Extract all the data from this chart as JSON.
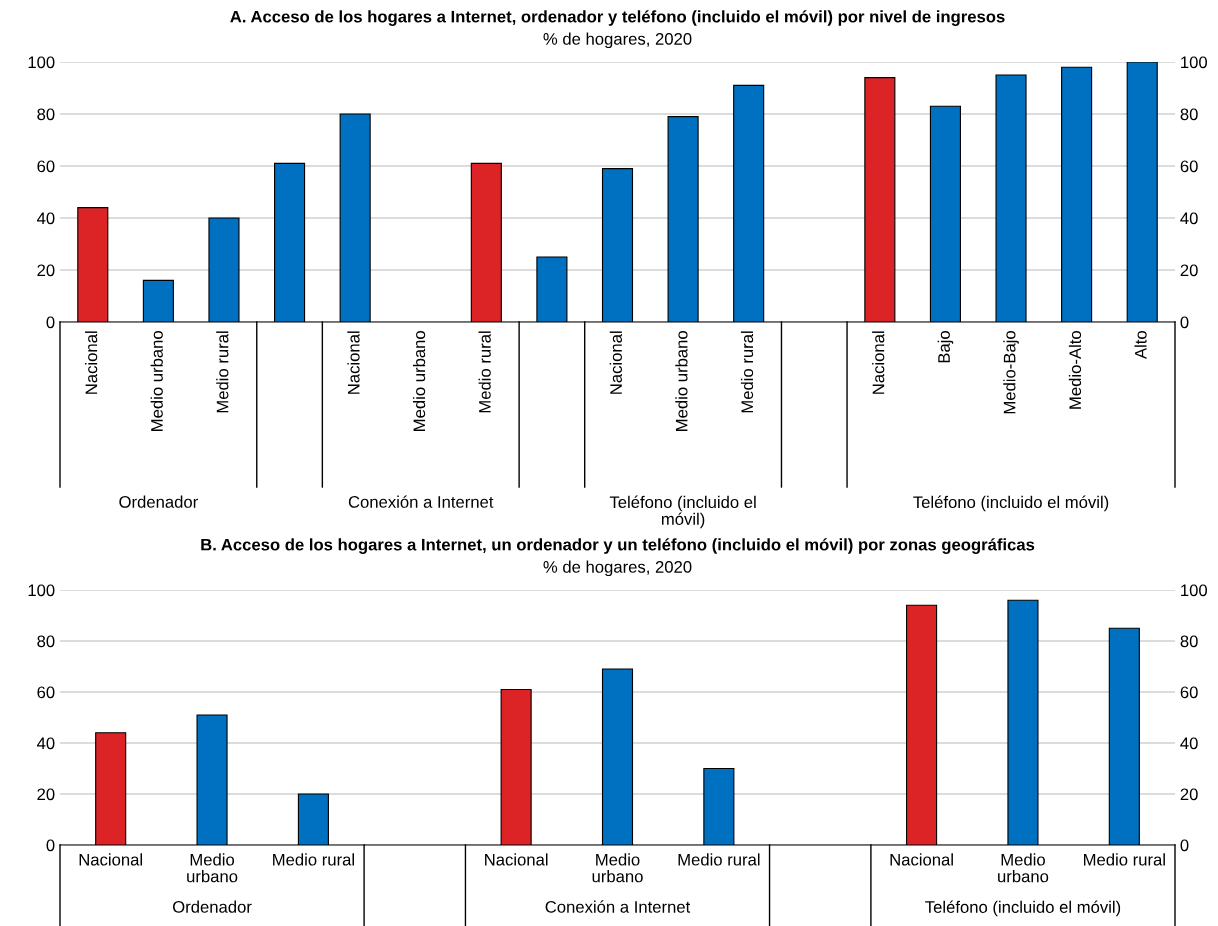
{
  "chart_data": [
    {
      "type": "bar",
      "title": "A. Acceso de los hogares a Internet, ordenador y teléfono (incluido el móvil) por nivel de ingresos",
      "subtitle": "% de hogares, 2020",
      "categories": [
        "Nacional",
        "Medio urbano",
        "Medio rural",
        null,
        "Nacional",
        "Medio urbano",
        "Medio rural",
        null,
        "Nacional",
        "Medio urbano",
        "Medio rural",
        null,
        "Nacional",
        "Bajo",
        "Medio-Bajo",
        "Medio-Alto",
        "Alto"
      ],
      "values": [
        44,
        16,
        40,
        61,
        80,
        null,
        61,
        25,
        59,
        79,
        91,
        null,
        94,
        83,
        95,
        98,
        100
      ],
      "colors": [
        "#dc2427",
        "#0070c0",
        "#0070c0",
        "#0070c0",
        "#0070c0",
        "#0070c0",
        "#dc2427",
        "#0070c0",
        "#0070c0",
        "#0070c0",
        "#0070c0",
        "#0070c0",
        "#dc2427",
        "#0070c0",
        "#0070c0",
        "#0070c0",
        "#0070c0"
      ],
      "annotations": [
        "Ordenador",
        "Conexión a Internet",
        "Teléfono (incluido el\nmóvil)",
        "Teléfono (incluido el móvil)"
      ],
      "ylim": [
        0,
        100
      ],
      "yticks": [
        0,
        20,
        40,
        60,
        80,
        100
      ],
      "y2lim": [
        0,
        100
      ],
      "y2ticks": [
        0,
        20,
        40,
        60,
        80,
        100
      ],
      "grid": "y",
      "legend": false
    },
    {
      "type": "bar",
      "title": "B. Acceso de los hogares a Internet, un ordenador y un teléfono (incluido el móvil) por zonas geográficas",
      "subtitle": "% de hogares, 2020",
      "categories": [
        "Nacional",
        "Medio\nurbano",
        "Medio rural",
        null,
        "Nacional",
        "Medio\nurbano",
        "Medio rural",
        null,
        "Nacional",
        "Medio\nurbano",
        "Medio rural"
      ],
      "values": [
        44,
        51,
        20,
        null,
        61,
        69,
        30,
        null,
        94,
        96,
        85
      ],
      "colors": [
        "#dc2427",
        "#0070c0",
        "#0070c0",
        "#0070c0",
        "#dc2427",
        "#0070c0",
        "#0070c0",
        "#0070c0",
        "#dc2427",
        "#0070c0",
        "#0070c0"
      ],
      "annotations": [
        "Ordenador",
        "Conexión a Internet",
        "Teléfono (incluido el móvil)"
      ],
      "ylim": [
        0,
        100
      ],
      "yticks": [
        0,
        20,
        40,
        60,
        80,
        100
      ],
      "y2lim": [
        0,
        100
      ],
      "y2ticks": [
        0,
        20,
        40,
        60,
        80,
        100
      ],
      "grid": "y",
      "legend": false
    }
  ]
}
